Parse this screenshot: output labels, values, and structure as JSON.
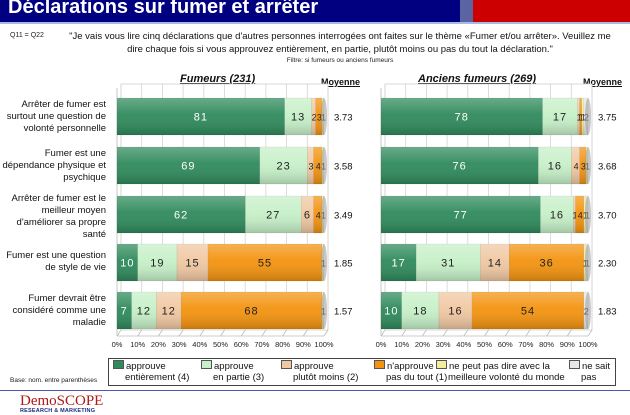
{
  "header": {
    "title": "Déclarations sur fumer et arrêter",
    "question_ref": "Q11 = Q22",
    "question_text": "\"Je vais vous lire cinq déclarations que d'autres personnes interrogées ont faites sur le thème «Fumer et/ou arrêter». Veuillez me dire chaque fois si vous approuvez entièrement, en partie, plutôt moins ou pas du tout la déclaration.\"",
    "filter": "Filtre: si fumeurs ou anciens fumeurs"
  },
  "moyenne_label": "Moyenne",
  "base_note": "Base: nom. entre parenthèses",
  "logo": {
    "name": "DemoSCOPE",
    "subtitle": "RESEARCH & MARKETING"
  },
  "colors": {
    "approuve_entierement": "#2f8a5c",
    "approuve_en_partie": "#c6f0c8",
    "approuve_plutot_moins": "#f0c8a2",
    "napprouve_pas": "#f3930f",
    "ne_peut_pas_dire": "#f2ee9c",
    "ne_sait_pas": "#e8e8e8",
    "header_navy": "#000080",
    "header_red": "#cc0000"
  },
  "chart_data": [
    {
      "type": "bar",
      "orientation": "horizontal-stacked-100",
      "title": "Fumeurs (231)",
      "categories": [
        "Arrêter de fumer est surtout une question de volonté personnelle",
        "Fumer est une dépendance physique et psychique",
        "Arrêter de fumer est le meilleur moyen d'améliorer sa propre santé",
        "Fumer est une question de style de vie",
        "Fumer devrait être considéré comme une maladie"
      ],
      "series": [
        {
          "name": "approuve entièrement (4)",
          "values": [
            81,
            69,
            62,
            10,
            7
          ]
        },
        {
          "name": "approuve en partie (3)",
          "values": [
            13,
            23,
            27,
            19,
            12
          ]
        },
        {
          "name": "approuve plutôt moins (2)",
          "values": [
            2,
            3,
            6,
            15,
            12
          ]
        },
        {
          "name": "n'approuve pas du tout (1)",
          "values": [
            3,
            4,
            4,
            55,
            68
          ]
        },
        {
          "name": "ne peut pas dire avec la meilleure volonté du monde",
          "values": [
            1,
            1,
            1,
            1,
            1
          ]
        },
        {
          "name": "ne sait pas",
          "values": [
            0,
            0,
            0,
            0,
            0
          ]
        }
      ],
      "moyenne": [
        "3.73",
        "3.58",
        "3.49",
        "1.85",
        "1.57"
      ],
      "xlim": [
        0,
        100
      ],
      "xticks": [
        "0%",
        "10%",
        "20%",
        "30%",
        "40%",
        "50%",
        "60%",
        "70%",
        "80%",
        "90%",
        "100%"
      ],
      "grid": true,
      "legend": "bottom"
    },
    {
      "type": "bar",
      "orientation": "horizontal-stacked-100",
      "title": "Anciens fumeurs (269)",
      "categories": [
        "Arrêter de fumer est surtout une question de volonté personnelle",
        "Fumer est une dépendance physique et psychique",
        "Arrêter de fumer est le meilleur moyen d'améliorer sa propre santé",
        "Fumer est une question de style de vie",
        "Fumer devrait être considéré comme une maladie"
      ],
      "series": [
        {
          "name": "approuve entièrement (4)",
          "values": [
            78,
            76,
            77,
            17,
            10
          ]
        },
        {
          "name": "approuve en partie (3)",
          "values": [
            17,
            16,
            16,
            31,
            18
          ]
        },
        {
          "name": "approuve plutôt moins (2)",
          "values": [
            1,
            4,
            1,
            14,
            16
          ]
        },
        {
          "name": "n'approuve pas du tout (1)",
          "values": [
            1,
            3,
            4,
            36,
            54
          ]
        },
        {
          "name": "ne peut pas dire avec la meilleure volonté du monde",
          "values": [
            1,
            1,
            1,
            1,
            0
          ]
        },
        {
          "name": "ne sait pas",
          "values": [
            2,
            0,
            1,
            1,
            2
          ]
        }
      ],
      "moyenne": [
        "3.75",
        "3.68",
        "3.70",
        "2.30",
        "1.83"
      ],
      "xlim": [
        0,
        100
      ],
      "xticks": [
        "0%",
        "10%",
        "20%",
        "30%",
        "40%",
        "50%",
        "60%",
        "70%",
        "80%",
        "90%",
        "100%"
      ],
      "grid": true,
      "legend": "bottom"
    }
  ],
  "legend": [
    {
      "line1": "approuve",
      "line2": "entièrement (4)",
      "color_key": "approuve_entierement"
    },
    {
      "line1": "approuve",
      "line2": "en partie (3)",
      "color_key": "approuve_en_partie"
    },
    {
      "line1": "approuve",
      "line2": "plutôt moins (2)",
      "color_key": "approuve_plutot_moins"
    },
    {
      "line1": "n'approuve",
      "line2": "pas du tout (1)",
      "color_key": "napprouve_pas"
    },
    {
      "line1": "ne peut pas dire avec la",
      "line2": "meilleure volonté du monde",
      "color_key": "ne_peut_pas_dire"
    },
    {
      "line1": "ne sait",
      "line2": "pas",
      "color_key": "ne_sait_pas"
    }
  ]
}
